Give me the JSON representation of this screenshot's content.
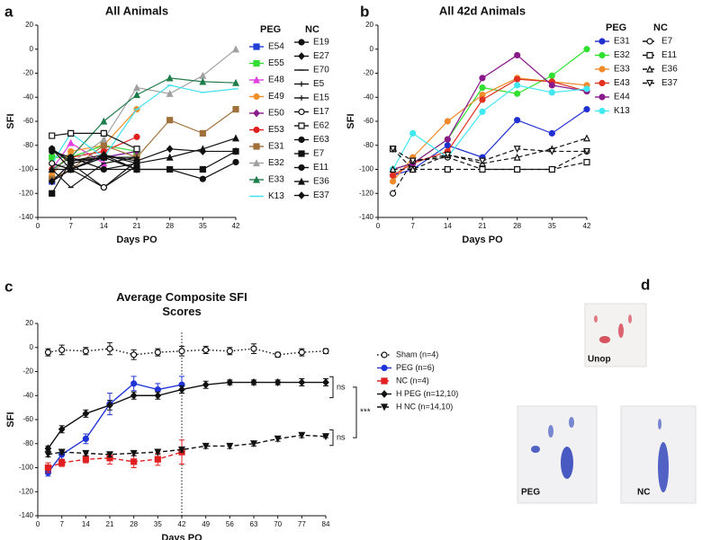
{
  "chart_data": [
    {
      "type": "line",
      "panel": "a",
      "title": "All Animals",
      "x_label": "Days PO",
      "y_label": "SFI",
      "x": [
        3,
        7,
        14,
        21,
        28,
        35,
        42
      ],
      "xlim": [
        0,
        42
      ],
      "xticks": [
        0,
        7,
        14,
        21,
        28,
        35,
        42
      ],
      "ylim": [
        -140,
        20
      ],
      "yticks": [
        -140,
        -120,
        -100,
        -80,
        -60,
        -40,
        -20,
        0,
        20
      ],
      "legend": "right",
      "legend_groups": [
        "PEG",
        "NC"
      ],
      "series": [
        {
          "name": "E54",
          "group": "PEG",
          "color": "#1f3fd6",
          "marker": "square",
          "values": [
            -110,
            -100,
            -90,
            -85,
            null,
            null,
            null
          ]
        },
        {
          "name": "E55",
          "group": "PEG",
          "color": "#33dd33",
          "marker": "square",
          "values": [
            -90,
            -90,
            -80,
            -85,
            null,
            null,
            null
          ]
        },
        {
          "name": "E48",
          "group": "PEG",
          "color": "#e040e0",
          "marker": "triangle",
          "values": [
            -100,
            -78,
            -95,
            null,
            null,
            null,
            null
          ]
        },
        {
          "name": "E49",
          "group": "PEG",
          "color": "#f0902a",
          "marker": "circle",
          "values": [
            -105,
            -85,
            -80,
            -50,
            null,
            null,
            null
          ]
        },
        {
          "name": "E50",
          "group": "PEG",
          "color": "#8b1a8b",
          "marker": "diamond",
          "values": [
            -110,
            -95,
            -90,
            -85,
            null,
            null,
            null
          ]
        },
        {
          "name": "E53",
          "group": "PEG",
          "color": "#e0201e",
          "marker": "circle",
          "values": [
            -100,
            -90,
            -85,
            -73,
            null,
            null,
            null
          ]
        },
        {
          "name": "E31",
          "group": "PEG",
          "color": "#a0703a",
          "marker": "square",
          "values": [
            -108,
            -100,
            -80,
            -90,
            -59,
            -70,
            -50
          ]
        },
        {
          "name": "E32",
          "group": "PEG",
          "color": "#a0a0a0",
          "marker": "triangle",
          "values": [
            -100,
            -95,
            -75,
            -32,
            -37,
            -22,
            0
          ]
        },
        {
          "name": "E33",
          "group": "PEG",
          "color": "#1e7d4a",
          "marker": "triangle",
          "values": [
            -100,
            -90,
            -60,
            -38,
            -24,
            -27,
            -28
          ]
        },
        {
          "name": "K13",
          "group": "PEG",
          "color": "#40e0f0",
          "marker": "minus",
          "values": [
            -95,
            -70,
            -90,
            -50,
            -30,
            -36,
            -33
          ]
        },
        {
          "name": "E19",
          "group": "NC",
          "color": "#111111",
          "marker": "circle",
          "values": [
            -83,
            -95,
            -115,
            -93,
            null,
            null,
            null
          ]
        },
        {
          "name": "E27",
          "group": "NC",
          "color": "#111111",
          "marker": "diamond",
          "values": [
            -110,
            -100,
            -90,
            -100,
            null,
            null,
            null
          ]
        },
        {
          "name": "E70",
          "group": "NC",
          "color": "#111111",
          "marker": "minus",
          "values": [
            -100,
            -115,
            -95,
            -90,
            null,
            null,
            null
          ]
        },
        {
          "name": "E5",
          "group": "NC",
          "color": "#111111",
          "marker": "plus",
          "values": [
            -95,
            -100,
            -88,
            -100,
            null,
            null,
            null
          ]
        },
        {
          "name": "E15",
          "group": "NC",
          "color": "#111111",
          "marker": "plus",
          "values": [
            -110,
            -95,
            -90,
            -90,
            null,
            null,
            null
          ]
        },
        {
          "name": "E17",
          "group": "NC",
          "color": "#111111",
          "marker": "circle-open",
          "values": [
            -95,
            -100,
            -115,
            -97,
            null,
            null,
            null
          ]
        },
        {
          "name": "E62",
          "group": "NC",
          "color": "#111111",
          "marker": "square-open",
          "values": [
            -72,
            -70,
            -70,
            -83,
            null,
            null,
            null
          ]
        },
        {
          "name": "E63",
          "group": "NC",
          "color": "#111111",
          "marker": "circle",
          "values": [
            -85,
            -90,
            -100,
            -95,
            null,
            null,
            null
          ]
        },
        {
          "name": "E7",
          "group": "NC",
          "color": "#111111",
          "marker": "square",
          "values": [
            -120,
            -93,
            -90,
            -100,
            -100,
            -100,
            -85
          ]
        },
        {
          "name": "E11",
          "group": "NC",
          "color": "#111111",
          "marker": "circle",
          "values": [
            -83,
            -100,
            -100,
            -100,
            -100,
            -108,
            -94
          ]
        },
        {
          "name": "E36",
          "group": "NC",
          "color": "#111111",
          "marker": "triangle",
          "values": [
            -100,
            -100,
            -88,
            -95,
            -90,
            -83,
            -74
          ]
        },
        {
          "name": "E37",
          "group": "NC",
          "color": "#111111",
          "marker": "diamond",
          "values": [
            -83,
            -93,
            -88,
            -93,
            -83,
            -85,
            -85
          ]
        }
      ]
    },
    {
      "type": "line",
      "panel": "b",
      "title": "All 42d Animals",
      "x_label": "Days PO",
      "y_label": "SFI",
      "x": [
        3,
        7,
        14,
        21,
        28,
        35,
        42
      ],
      "xlim": [
        0,
        42
      ],
      "xticks": [
        0,
        7,
        14,
        21,
        28,
        35,
        42
      ],
      "ylim": [
        -140,
        20
      ],
      "yticks": [
        -140,
        -120,
        -100,
        -80,
        -60,
        -40,
        -20,
        0,
        20
      ],
      "legend": "right",
      "legend_groups": [
        "PEG",
        "NC"
      ],
      "series": [
        {
          "name": "E31",
          "group": "PEG",
          "color": "#2030d0",
          "marker": "circle",
          "values": [
            -105,
            -100,
            -80,
            -90,
            -59,
            -70,
            -50
          ]
        },
        {
          "name": "E32",
          "group": "PEG",
          "color": "#30e030",
          "marker": "circle",
          "values": [
            -100,
            -95,
            -75,
            -32,
            -37,
            -22,
            0
          ]
        },
        {
          "name": "E33",
          "group": "PEG",
          "color": "#f08a2a",
          "marker": "circle",
          "values": [
            -110,
            -90,
            -60,
            -38,
            -24,
            -27,
            -30
          ]
        },
        {
          "name": "E43",
          "group": "PEG",
          "color": "#e03020",
          "marker": "circle",
          "values": [
            -105,
            -95,
            -85,
            -42,
            -25,
            -27,
            -35
          ]
        },
        {
          "name": "E44",
          "group": "PEG",
          "color": "#8a1a8a",
          "marker": "circle",
          "values": [
            -100,
            -95,
            -75,
            -24,
            -5,
            -30,
            -35
          ]
        },
        {
          "name": "K13",
          "group": "PEG",
          "color": "#40e8f0",
          "marker": "circle",
          "values": [
            -100,
            -70,
            -90,
            -52,
            -30,
            -36,
            -33
          ]
        },
        {
          "name": "E7",
          "group": "NC",
          "color": "#111111",
          "marker": "circle-open",
          "dash": "dashed",
          "values": [
            -120,
            -93,
            -90,
            -100,
            -100,
            -100,
            -85
          ]
        },
        {
          "name": "E11",
          "group": "NC",
          "color": "#111111",
          "marker": "square-open",
          "dash": "dashed",
          "values": [
            -83,
            -100,
            -100,
            -100,
            -100,
            -100,
            -94
          ]
        },
        {
          "name": "E36",
          "group": "NC",
          "color": "#111111",
          "marker": "triangle-open",
          "dash": "dashed",
          "values": [
            -100,
            -100,
            -88,
            -95,
            -90,
            -83,
            -74
          ]
        },
        {
          "name": "E37",
          "group": "NC",
          "color": "#111111",
          "marker": "tdown-open",
          "dash": "dashed",
          "values": [
            -83,
            -93,
            -88,
            -93,
            -83,
            -85,
            -85
          ]
        }
      ]
    },
    {
      "type": "line",
      "panel": "c",
      "title": "Average Composite SFI Scores",
      "x_label": "Days PO",
      "y_label": "SFI",
      "xlim": [
        0,
        84
      ],
      "xticks": [
        0,
        7,
        14,
        21,
        28,
        35,
        42,
        49,
        56,
        63,
        70,
        77,
        84
      ],
      "ylim": [
        -140,
        20
      ],
      "yticks": [
        -140,
        -120,
        -100,
        -80,
        -60,
        -40,
        -20,
        0,
        20
      ],
      "vline": 42,
      "legend": "right",
      "annotations": [
        "ns",
        "ns",
        "***"
      ],
      "series": [
        {
          "name": "Sham (n=4)",
          "color": "#111111",
          "marker": "circle-open",
          "dash": "dotted",
          "x": [
            3,
            7,
            14,
            21,
            28,
            35,
            42,
            49,
            56,
            63,
            70,
            77,
            84
          ],
          "values": [
            -4,
            -2,
            -3,
            -1,
            -6,
            -4,
            -3,
            -2,
            -3,
            -1,
            -6,
            -4,
            -3
          ],
          "errors": [
            3,
            4,
            3,
            5,
            4,
            3,
            4,
            3,
            3,
            4,
            2,
            3,
            2
          ]
        },
        {
          "name": "PEG (n=6)",
          "color": "#1f35d8",
          "marker": "circle",
          "x": [
            3,
            7,
            14,
            21,
            28,
            35,
            42
          ],
          "values": [
            -104,
            -89,
            -76,
            -47,
            -30,
            -35,
            -31
          ],
          "errors": [
            3,
            4,
            4,
            9,
            6,
            5,
            7
          ]
        },
        {
          "name": "NC (n=4)",
          "color": "#e02020",
          "marker": "square",
          "dash": "dashed",
          "x": [
            3,
            7,
            14,
            21,
            28,
            35,
            42
          ],
          "values": [
            -100,
            -96,
            -93,
            -92,
            -95,
            -93,
            -87
          ],
          "errors": [
            4,
            3,
            3,
            5,
            5,
            5,
            10
          ]
        },
        {
          "name": "H PEG (n=12,10)",
          "color": "#111111",
          "marker": "diamond",
          "x": [
            3,
            7,
            14,
            21,
            28,
            35,
            42,
            49,
            56,
            63,
            70,
            77,
            84
          ],
          "values": [
            -84,
            -68,
            -55,
            -48,
            -40,
            -40,
            -35,
            -31,
            -29,
            -29,
            -29,
            -29,
            -29
          ],
          "errors": [
            2,
            3,
            3,
            4,
            3,
            3,
            3,
            3,
            2,
            2,
            2,
            3,
            3
          ]
        },
        {
          "name": "H NC (n=14,10)",
          "color": "#111111",
          "marker": "tdown",
          "dash": "dashed",
          "x": [
            3,
            7,
            14,
            21,
            28,
            35,
            42,
            49,
            56,
            63,
            70,
            77,
            84
          ],
          "values": [
            -89,
            -87,
            -88,
            -89,
            -88,
            -87,
            -85,
            -82,
            -82,
            -80,
            -76,
            -73,
            -74
          ],
          "errors": [
            2,
            2,
            2,
            2,
            2,
            2,
            2,
            2,
            2,
            2,
            2,
            2,
            1
          ]
        }
      ]
    }
  ],
  "photos": {
    "panel": "d",
    "labels": [
      "Unop",
      "PEG",
      "NC"
    ]
  }
}
